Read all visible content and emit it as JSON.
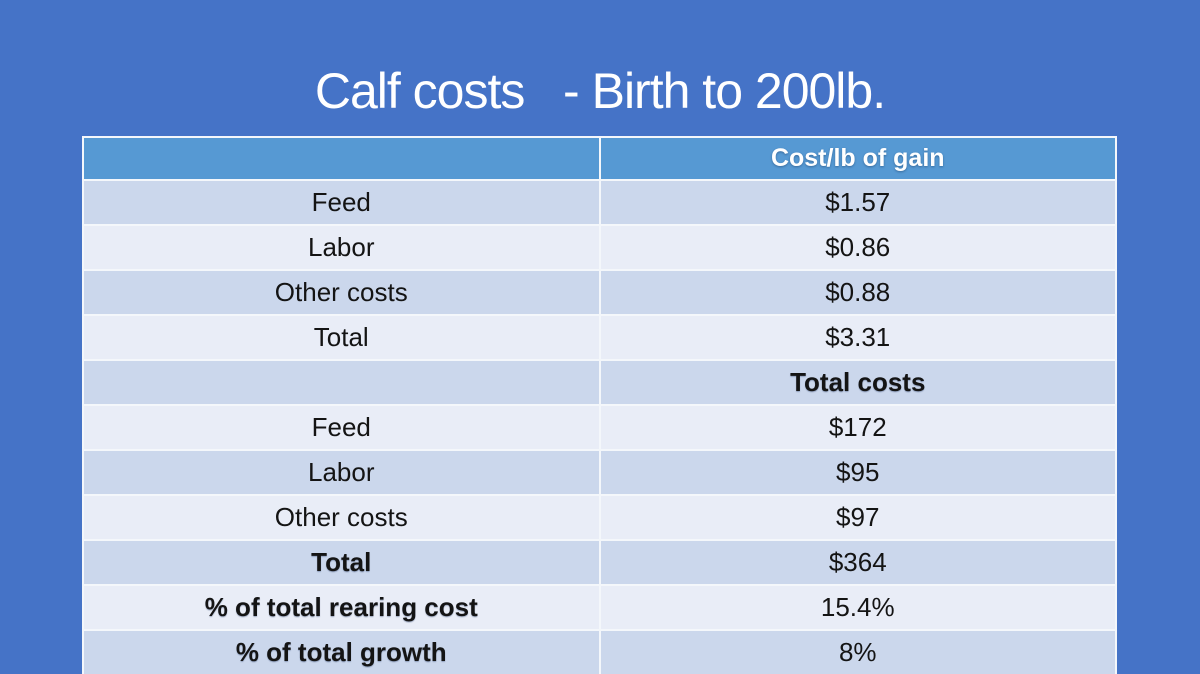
{
  "slide": {
    "title": "Calf costs   - Birth to 200lb."
  },
  "table": {
    "header": {
      "item_label": "",
      "value_label": "Cost/lb of gain"
    },
    "rows": [
      {
        "label": "Feed",
        "value": "$1.57",
        "label_bold": false,
        "value_bold": false
      },
      {
        "label": "Labor",
        "value": "$0.86",
        "label_bold": false,
        "value_bold": false
      },
      {
        "label": "Other costs",
        "value": "$0.88",
        "label_bold": false,
        "value_bold": false
      },
      {
        "label": "Total",
        "value": "$3.31",
        "label_bold": false,
        "value_bold": false
      },
      {
        "label": "",
        "value": "Total costs",
        "label_bold": false,
        "value_bold": true
      },
      {
        "label": "Feed",
        "value": "$172",
        "label_bold": false,
        "value_bold": false
      },
      {
        "label": "Labor",
        "value": "$95",
        "label_bold": false,
        "value_bold": false
      },
      {
        "label": "Other costs",
        "value": "$97",
        "label_bold": false,
        "value_bold": false
      },
      {
        "label": "Total",
        "value": "$364",
        "label_bold": true,
        "value_bold": false
      },
      {
        "label": "% of total rearing cost",
        "value": "15.4%",
        "label_bold": true,
        "value_bold": false
      },
      {
        "label": "% of total growth",
        "value": "8%",
        "label_bold": true,
        "value_bold": false
      }
    ]
  },
  "colors": {
    "background": "#4573C7",
    "header_fill": "#5699D3",
    "band_dark": "#CBD7EC",
    "band_light": "#E9EDF7",
    "border": "#F4F7FB",
    "title_text": "#FFFFFF",
    "body_text": "#141414"
  }
}
